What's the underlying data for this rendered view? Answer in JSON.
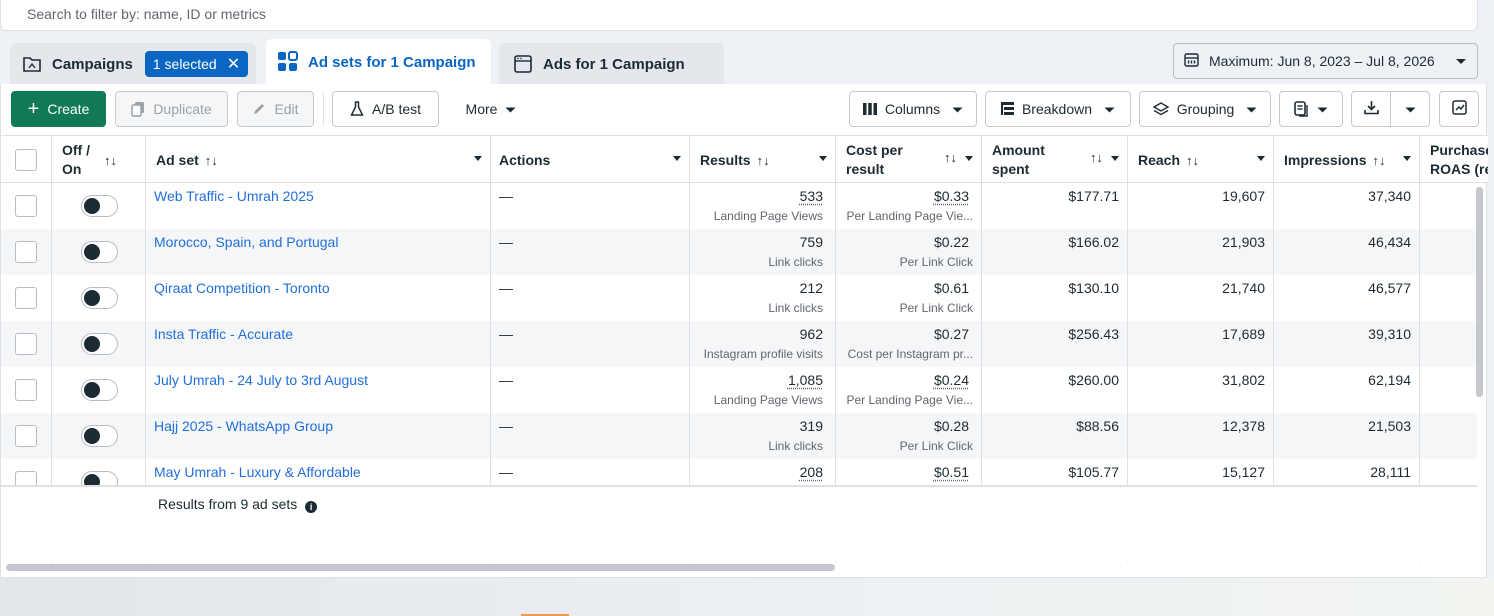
{
  "search": {
    "placeholder": "Search to filter by: name, ID or metrics"
  },
  "tabs": {
    "campaigns": {
      "label": "Campaigns",
      "selected_pill": "1 selected",
      "pill_close": "✕"
    },
    "adsets": {
      "label": "Ad sets for 1 Campaign"
    },
    "ads": {
      "label": "Ads for 1 Campaign"
    }
  },
  "date_range": {
    "label": "Maximum: Jun 8, 2023 – Jul 8, 2026"
  },
  "toolbar": {
    "create": "Create",
    "duplicate": "Duplicate",
    "edit": "Edit",
    "ab_test": "A/B test",
    "more": "More",
    "columns": "Columns",
    "breakdown": "Breakdown",
    "grouping": "Grouping"
  },
  "columns": {
    "off_on_1": "Off /",
    "off_on_2": "On",
    "adset": "Ad set",
    "actions": "Actions",
    "results": "Results",
    "cpr_1": "Cost per",
    "cpr_2": "result",
    "amount_1": "Amount",
    "amount_2": "spent",
    "reach": "Reach",
    "impressions": "Impressions",
    "purchase_1": "Purchase",
    "purchase_2": "ROAS (re"
  },
  "rows": [
    {
      "name": "Web Traffic - Umrah 2025",
      "actions": "—",
      "results": "533",
      "results_sub": "Landing Page Views",
      "cpr": "$0.33",
      "cpr_sub": "Per Landing Page Vie...",
      "spent": "$177.71",
      "reach": "19,607",
      "impressions": "37,340"
    },
    {
      "name": "Morocco, Spain, and Portugal",
      "actions": "—",
      "results": "759",
      "results_sub": "Link clicks",
      "cpr": "$0.22",
      "cpr_sub": "Per Link Click",
      "spent": "$166.02",
      "reach": "21,903",
      "impressions": "46,434"
    },
    {
      "name": "Qiraat Competition - Toronto",
      "actions": "—",
      "results": "212",
      "results_sub": "Link clicks",
      "cpr": "$0.61",
      "cpr_sub": "Per Link Click",
      "spent": "$130.10",
      "reach": "21,740",
      "impressions": "46,577"
    },
    {
      "name": "Insta Traffic - Accurate",
      "actions": "—",
      "results": "962",
      "results_sub": "Instagram profile visits",
      "cpr": "$0.27",
      "cpr_sub": "Cost per Instagram pr...",
      "spent": "$256.43",
      "reach": "17,689",
      "impressions": "39,310"
    },
    {
      "name": "July Umrah - 24 July to 3rd August",
      "actions": "—",
      "results": "1,085",
      "results_sub": "Landing Page Views",
      "cpr": "$0.24",
      "cpr_sub": "Per Landing Page Vie...",
      "spent": "$260.00",
      "reach": "31,802",
      "impressions": "62,194"
    },
    {
      "name": "Hajj 2025 - WhatsApp Group",
      "actions": "—",
      "results": "319",
      "results_sub": "Link clicks",
      "cpr": "$0.28",
      "cpr_sub": "Per Link Click",
      "spent": "$88.56",
      "reach": "12,378",
      "impressions": "21,503"
    },
    {
      "name": "May Umrah - Luxury & Affordable",
      "actions": "—",
      "results": "208",
      "results_sub": "",
      "cpr": "$0.51",
      "cpr_sub": "",
      "spent": "$105.77",
      "reach": "15,127",
      "impressions": "28,111"
    }
  ],
  "results_summary": {
    "label": "Results from 9 ad sets",
    "info_glyph": "i"
  },
  "colors": {
    "accent_blue": "#0a66c2",
    "link_blue": "#216fdb",
    "create_green": "#117a55"
  }
}
